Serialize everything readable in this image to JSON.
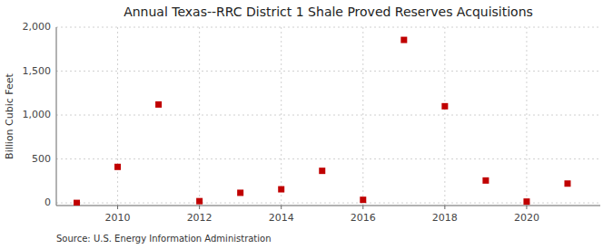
{
  "chart_data": {
    "type": "scatter",
    "title": "Annual Texas--RRC District 1 Shale Proved Reserves Acquisitions",
    "y_label": "Billion Cubic Feet",
    "annotations": [
      "Source: U.S. Energy Information Administration"
    ],
    "x": [
      2009,
      2010,
      2011,
      2012,
      2013,
      2014,
      2015,
      2016,
      2017,
      2018,
      2019,
      2020,
      2021
    ],
    "values": [
      0,
      410,
      1120,
      20,
      115,
      155,
      365,
      35,
      1855,
      1100,
      255,
      15,
      220
    ],
    "color": "#c00000",
    "marker": "square",
    "xlim": [
      2008.5,
      2021.8
    ],
    "ylim": [
      -30,
      2000
    ],
    "xticks": [
      2010,
      2012,
      2014,
      2016,
      2018,
      2020
    ],
    "yticks": [
      0,
      500,
      {
        "value": 1000,
        "label": "1,000"
      },
      {
        "value": 1500,
        "label": "1,500"
      },
      {
        "value": 2000,
        "label": "2,000"
      }
    ],
    "grid": true
  }
}
